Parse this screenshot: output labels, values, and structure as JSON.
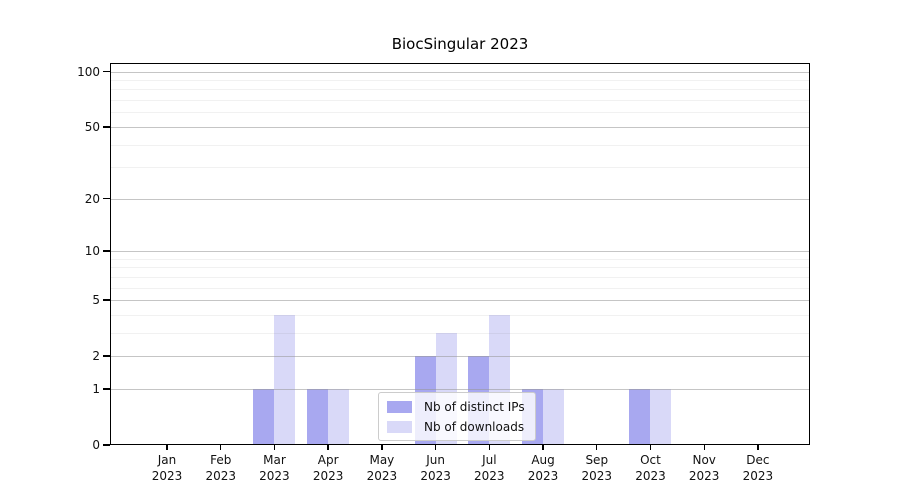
{
  "title": "BiocSingular 2023",
  "chart_data": {
    "type": "bar",
    "title": "BiocSingular 2023",
    "x_categories": [
      "Jan",
      "Feb",
      "Mar",
      "Apr",
      "May",
      "Jun",
      "Jul",
      "Aug",
      "Sep",
      "Oct",
      "Nov",
      "Dec"
    ],
    "x_year": "2023",
    "series": [
      {
        "name": "Nb of distinct IPs",
        "color": "#a8a8f0",
        "values": [
          0,
          0,
          1,
          1,
          0,
          2,
          2,
          1,
          0,
          1,
          0,
          0
        ]
      },
      {
        "name": "Nb of downloads",
        "color": "#d9d9f8",
        "values": [
          0,
          0,
          4,
          1,
          0,
          3,
          4,
          1,
          0,
          1,
          0,
          0
        ]
      }
    ],
    "y_scale": "log1p",
    "y_axis_ticks": [
      0,
      1,
      2,
      5,
      10,
      20,
      50,
      100
    ],
    "y_major_gridlines": [
      1,
      2,
      5,
      10,
      20,
      50,
      100
    ],
    "y_minor_gridlines": [
      3,
      4,
      6,
      7,
      8,
      9,
      30,
      40,
      60,
      70,
      80,
      90
    ],
    "ylim": [
      0,
      111
    ],
    "grid": "horizontal",
    "legend_position": "lower center"
  },
  "colors": {
    "bar_distinct_ips": "#a8a8f0",
    "bar_downloads": "#d9d9f8",
    "spine": "#000000",
    "major_grid": "#c8c8c8",
    "minor_grid": "#f0f0f0",
    "text": "#111111",
    "background": "#ffffff"
  }
}
